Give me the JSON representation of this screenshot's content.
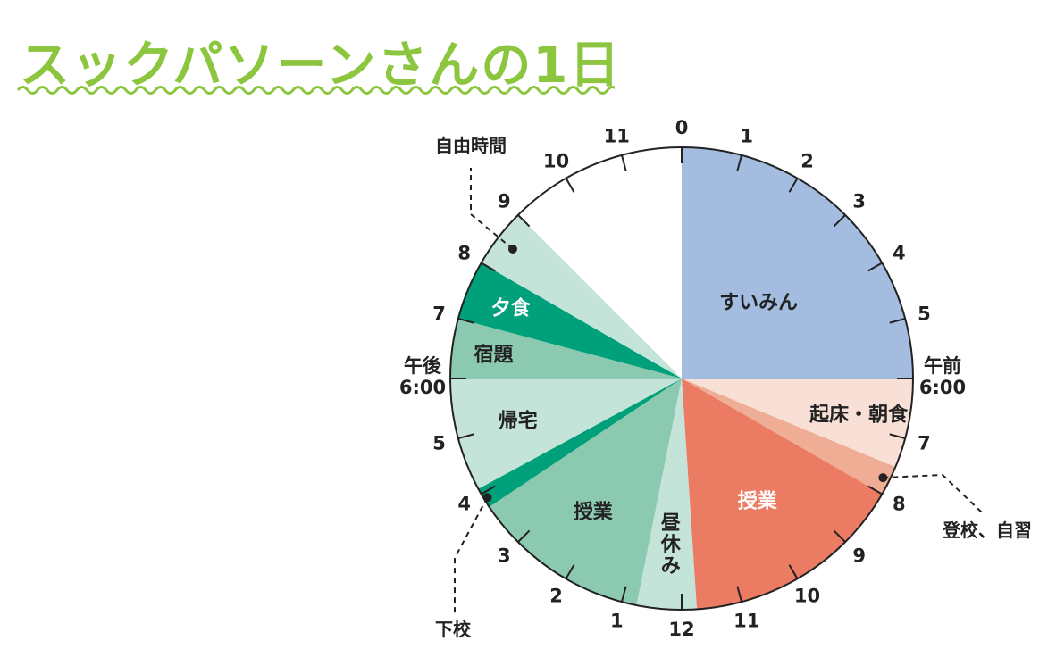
{
  "title": "スックパソーンさんの1日",
  "colors": {
    "title": "#8cc63f",
    "wave": "#8cc63f",
    "sleep": "#a3bce0",
    "morning": "#f8e0d6",
    "commute": "#f0ad96",
    "class_am": "#ec7b64",
    "lunch": "#c5e4d9",
    "class_pm": "#8bc9b0",
    "leave": "#00a07a",
    "home": "#c5e4d9",
    "homework": "#8bc9b0",
    "dinner": "#00a07a",
    "free": "#c5e4d9",
    "outline": "#222222",
    "label_dark": "#222222",
    "label_light": "#ffffff"
  },
  "chart_data": {
    "type": "pie",
    "unit": "hours",
    "start_hour": 0,
    "direction": "clockwise",
    "segments": [
      {
        "label": "すいみん",
        "start": 0,
        "end": 6,
        "color_key": "sleep",
        "label_color": "label_dark"
      },
      {
        "label": "起床・朝食",
        "start": 6,
        "end": 7.5,
        "color_key": "morning",
        "label_color": "label_dark"
      },
      {
        "label": "",
        "start": 7.5,
        "end": 8,
        "color_key": "commute",
        "label_color": "label_dark"
      },
      {
        "label": "授業",
        "start": 8,
        "end": 11.75,
        "color_key": "class_am",
        "label_color": "label_light"
      },
      {
        "label": "昼休み",
        "start": 11.75,
        "end": 12.75,
        "color_key": "lunch",
        "label_color": "label_dark"
      },
      {
        "label": "授業",
        "start": 12.75,
        "end": 15.75,
        "color_key": "class_pm",
        "label_color": "label_dark"
      },
      {
        "label": "",
        "start": 15.75,
        "end": 16.1,
        "color_key": "leave",
        "label_color": "label_dark"
      },
      {
        "label": "帰宅",
        "start": 16.1,
        "end": 18,
        "color_key": "home",
        "label_color": "label_dark"
      },
      {
        "label": "宿題",
        "start": 18,
        "end": 19,
        "color_key": "homework",
        "label_color": "label_dark"
      },
      {
        "label": "夕食",
        "start": 19,
        "end": 20,
        "color_key": "dinner",
        "label_color": "label_light"
      },
      {
        "label": "",
        "start": 20,
        "end": 21,
        "color_key": "free",
        "label_color": "label_dark"
      }
    ],
    "hour_ticks": [
      {
        "hour": 0,
        "label": "0"
      },
      {
        "hour": 1,
        "label": "1"
      },
      {
        "hour": 2,
        "label": "2"
      },
      {
        "hour": 3,
        "label": "3"
      },
      {
        "hour": 4,
        "label": "4"
      },
      {
        "hour": 5,
        "label": "5"
      },
      {
        "hour": 6,
        "label": ""
      },
      {
        "hour": 7,
        "label": "7"
      },
      {
        "hour": 8,
        "label": "8"
      },
      {
        "hour": 9,
        "label": "9"
      },
      {
        "hour": 10,
        "label": "10"
      },
      {
        "hour": 11,
        "label": "11"
      },
      {
        "hour": 12,
        "label": "12"
      },
      {
        "hour": 13,
        "label": "1"
      },
      {
        "hour": 14,
        "label": "2"
      },
      {
        "hour": 15,
        "label": "3"
      },
      {
        "hour": 16,
        "label": "4"
      },
      {
        "hour": 17,
        "label": "5"
      },
      {
        "hour": 18,
        "label": ""
      },
      {
        "hour": 19,
        "label": "7"
      },
      {
        "hour": 20,
        "label": "8"
      },
      {
        "hour": 21,
        "label": "9"
      },
      {
        "hour": 22,
        "label": "10"
      },
      {
        "hour": 23,
        "label": "11"
      }
    ],
    "side_labels": {
      "am_six": [
        "午前",
        "6:00"
      ],
      "pm_six": [
        "午後",
        "6:00"
      ]
    },
    "annotations": [
      {
        "text": "自由時間",
        "hour": 20.5
      },
      {
        "text": "登校、自習",
        "hour": 7.75
      },
      {
        "text": "下校",
        "hour": 15.9
      }
    ]
  }
}
